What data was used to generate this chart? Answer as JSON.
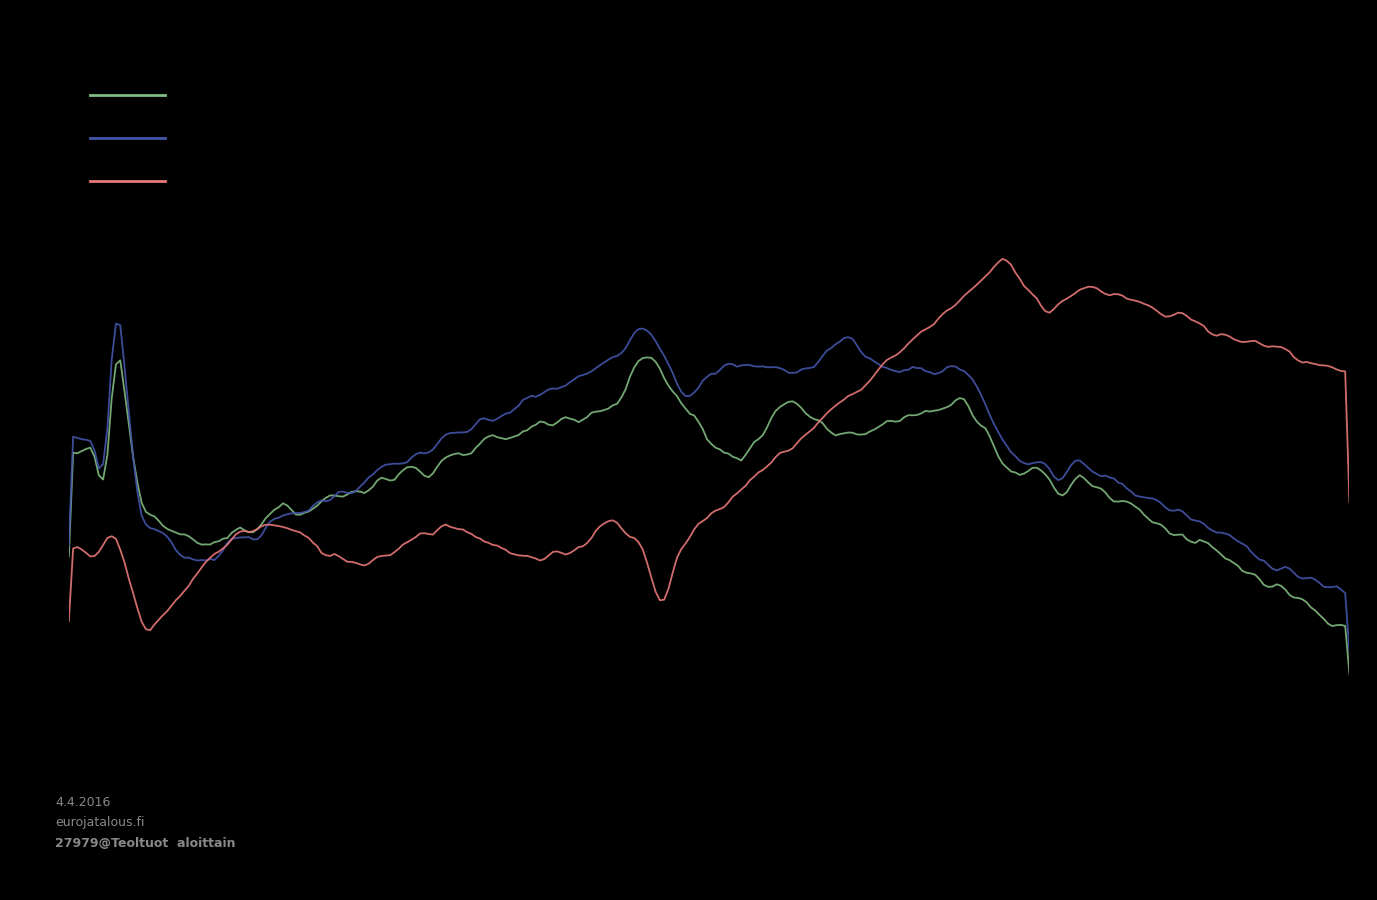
{
  "background_color": "#000000",
  "line_colors": [
    "#7fba7f",
    "#4455aa",
    "#e87878"
  ],
  "footer_text": [
    "4.4.2016",
    "eurojatalous.fi",
    "27979@Teoltuot  aloittain"
  ],
  "footer_color": "#888888"
}
